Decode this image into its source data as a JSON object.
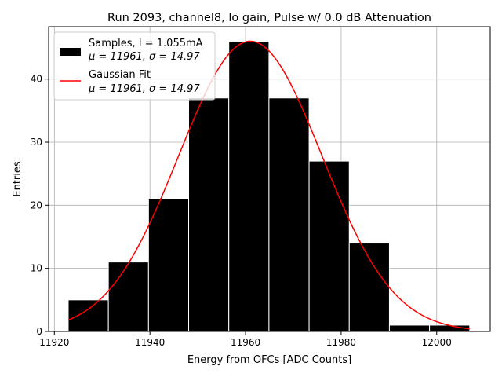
{
  "chart_data": {
    "type": "histogram",
    "title": "Run 2093, channel8, lo gain, Pulse w/ 0.0 dB Attenuation",
    "xlabel": "Energy from OFCs [ADC Counts]",
    "ylabel": "Entries",
    "xlim": [
      11918.8,
      12011.2
    ],
    "ylim": [
      0,
      48.3
    ],
    "xticks": [
      11920,
      11940,
      11960,
      11980,
      12000
    ],
    "yticks": [
      0,
      10,
      20,
      30,
      40
    ],
    "grid": true,
    "bins": [
      {
        "x0": 11922.9,
        "x1": 11931.3,
        "count": 5
      },
      {
        "x0": 11931.3,
        "x1": 11939.7,
        "count": 11
      },
      {
        "x0": 11939.7,
        "x1": 11948.1,
        "count": 21
      },
      {
        "x0": 11948.1,
        "x1": 11956.5,
        "count": 37
      },
      {
        "x0": 11956.5,
        "x1": 11964.9,
        "count": 46
      },
      {
        "x0": 11964.9,
        "x1": 11973.3,
        "count": 37
      },
      {
        "x0": 11973.3,
        "x1": 11981.7,
        "count": 27
      },
      {
        "x0": 11981.7,
        "x1": 11990.1,
        "count": 14
      },
      {
        "x0": 11990.1,
        "x1": 11998.5,
        "count": 1
      },
      {
        "x0": 11998.5,
        "x1": 12006.9,
        "count": 1
      }
    ],
    "fit": {
      "mu": 11961,
      "sigma": 14.97,
      "amplitude": 46,
      "x_range": [
        11922.9,
        12006.9
      ]
    },
    "legend": {
      "location": "upper-left",
      "entries": [
        {
          "label": "Samples, I = 1.055mA",
          "sublabel": "μ = 11961, σ = 14.97",
          "style": "bar",
          "color": "#000000"
        },
        {
          "label": "Gaussian Fit",
          "sublabel": "μ = 11961, σ = 14.97",
          "style": "line",
          "color": "#ff0000"
        }
      ]
    },
    "colors": {
      "bars": "#000000",
      "bar_edge": "#ffffff",
      "fit": "#ff0000",
      "grid": "#b0b0b0"
    }
  }
}
